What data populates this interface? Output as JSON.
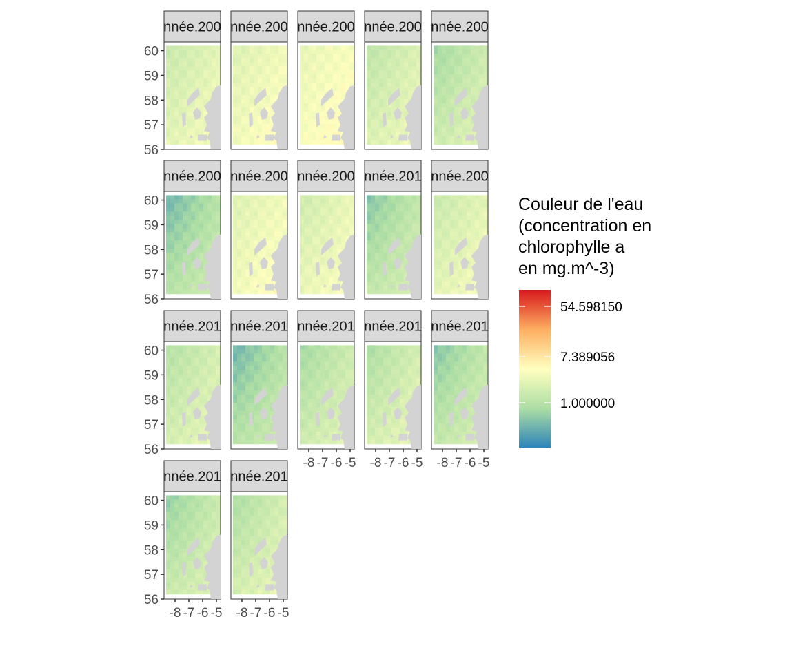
{
  "chart_data": {
    "type": "heatmap",
    "facet_labels": [
      "nnée.200",
      "nnée.200",
      "nnée.200",
      "nnée.200",
      "nnée.200",
      "nnée.200",
      "nnée.200",
      "nnée.200",
      "nnée.201",
      "nnée.200",
      "nnée.201",
      "nnée.201",
      "nnée.201",
      "nnée.201",
      "nnée.201",
      "nnée.201",
      "nnée.201"
    ],
    "x_ticks": [
      -8,
      -7,
      -6,
      -5
    ],
    "y_ticks": [
      56,
      57,
      58,
      59,
      60
    ],
    "xlim": [
      -8.8,
      -4.7
    ],
    "ylim": [
      56,
      60.35
    ],
    "legend": {
      "title_lines": [
        "Couleur de l'eau",
        "(concentration en",
        "chlorophylle a",
        "en mg.m^-3)"
      ],
      "labels": [
        "54.598150",
        "7.389056",
        "1.000000"
      ],
      "scale": "log",
      "palette": [
        "#2b83ba",
        "#abdda4",
        "#ffffbf",
        "#fdae61",
        "#d7191c"
      ]
    },
    "land_color": "#d3d3d3",
    "facet_tone": [
      0.42,
      0.46,
      0.48,
      0.4,
      0.36,
      0.3,
      0.46,
      0.44,
      0.33,
      0.42,
      0.38,
      0.3,
      0.36,
      0.38,
      0.33,
      0.35,
      0.38
    ],
    "facet_variation": [
      0.08,
      0.06,
      0.05,
      0.09,
      0.12,
      0.16,
      0.06,
      0.08,
      0.15,
      0.08,
      0.1,
      0.16,
      0.12,
      0.12,
      0.15,
      0.14,
      0.12
    ]
  }
}
